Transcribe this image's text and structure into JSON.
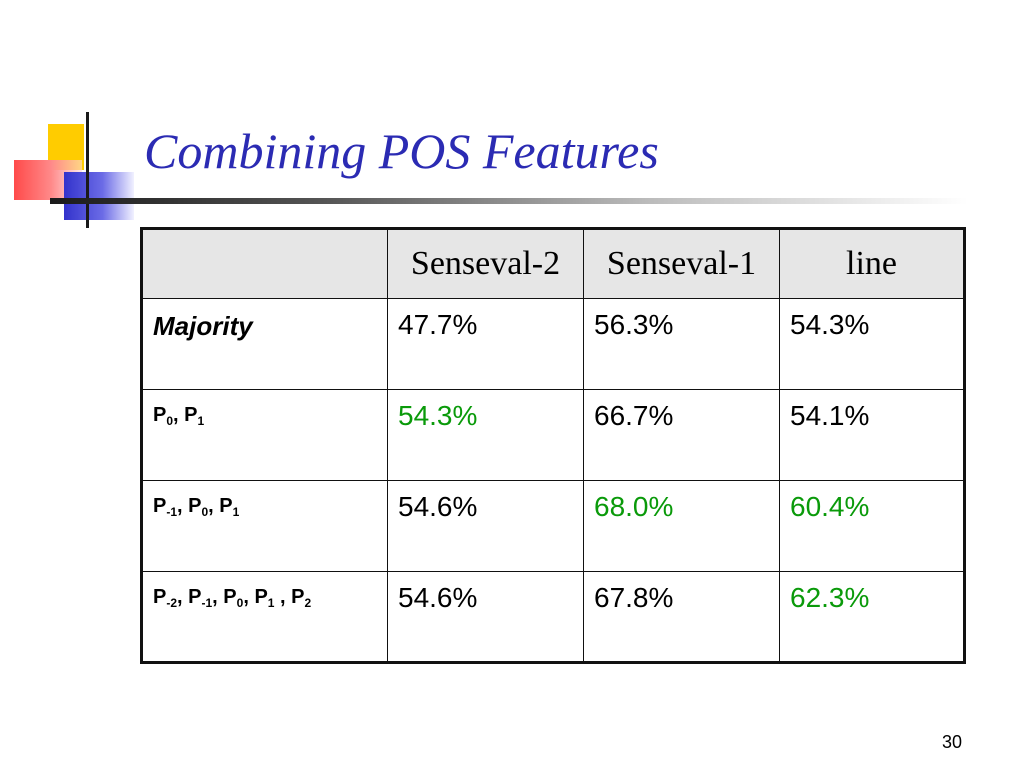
{
  "slide": {
    "title": "Combining POS Features",
    "page_number": "30"
  },
  "table": {
    "headers": [
      "",
      "Senseval-2",
      "Senseval-1",
      "line"
    ],
    "rows": [
      {
        "label": "Majority",
        "values": [
          "47.7%",
          "56.3%",
          "54.3%"
        ],
        "highlighted": [
          false,
          false,
          false
        ]
      },
      {
        "label": "P0, P1",
        "label_parts": [
          [
            "P",
            "0"
          ],
          [
            "P",
            "1"
          ]
        ],
        "values": [
          "54.3%",
          "66.7%",
          "54.1%"
        ],
        "highlighted": [
          true,
          false,
          false
        ]
      },
      {
        "label": "P-1, P0, P1",
        "label_parts": [
          [
            "P",
            "-1"
          ],
          [
            "P",
            "0"
          ],
          [
            "P",
            "1"
          ]
        ],
        "values": [
          "54.6%",
          "68.0%",
          "60.4%"
        ],
        "highlighted": [
          false,
          true,
          true
        ]
      },
      {
        "label": "P-2, P-1, P0, P1 , P2",
        "label_parts": [
          [
            "P",
            "-2"
          ],
          [
            "P",
            "-1"
          ],
          [
            "P",
            "0"
          ],
          [
            "P",
            "1"
          ],
          [
            "P",
            "2"
          ]
        ],
        "values": [
          "54.6%",
          "67.8%",
          "62.3%"
        ],
        "highlighted": [
          false,
          false,
          true
        ]
      }
    ]
  },
  "colors": {
    "title": "#2b2bb3",
    "highlight": "#0a9a0a",
    "header_bg": "#e6e6e6"
  }
}
